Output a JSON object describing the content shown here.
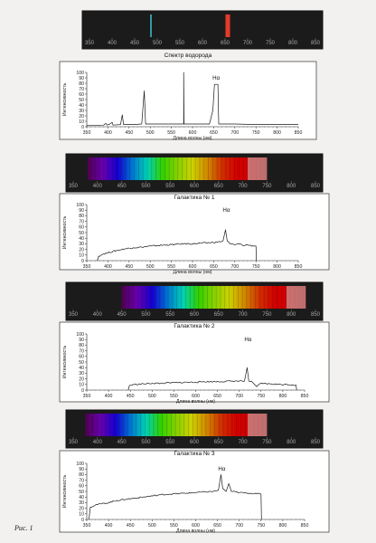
{
  "figure_label": "Рис. 1",
  "chart_data": [
    {
      "type": "line",
      "id": "hydrogen",
      "title": "Спектр водорода",
      "xlabel": "Длина волны (нм)",
      "ylabel": "Интенсивность",
      "xlim": [
        350,
        850
      ],
      "ylim": [
        0,
        100
      ],
      "x_ticks": [
        350,
        400,
        450,
        500,
        550,
        600,
        650,
        700,
        750,
        800,
        850
      ],
      "y_ticks": [
        0,
        10,
        20,
        30,
        40,
        50,
        60,
        70,
        80,
        90,
        100
      ],
      "strip_ticks": [
        350,
        400,
        450,
        500,
        550,
        600,
        650,
        700,
        750,
        800,
        850
      ],
      "strip_lines": [
        {
          "nm": 486,
          "color": "#3fd0e0"
        },
        {
          "nm": 656,
          "color": "#e43b2a"
        }
      ],
      "annotation": {
        "text": "Hα",
        "x": 656
      },
      "series": [
        {
          "points": [
            [
              350,
              2
            ],
            [
              390,
              3
            ],
            [
              395,
              6
            ],
            [
              398,
              3
            ],
            [
              405,
              5
            ],
            [
              410,
              8
            ],
            [
              412,
              3
            ],
            [
              430,
              4
            ],
            [
              434,
              22
            ],
            [
              437,
              4
            ],
            [
              460,
              4
            ],
            [
              480,
              5
            ],
            [
              486,
              66
            ],
            [
              489,
              5
            ],
            [
              540,
              5
            ],
            [
              579,
              5
            ],
            [
              579,
              100
            ],
            [
              580,
              5
            ],
            [
              640,
              5
            ],
            [
              648,
              30
            ],
            [
              652,
              78
            ],
            [
              660,
              78
            ],
            [
              662,
              5
            ],
            [
              700,
              5
            ],
            [
              750,
              4
            ],
            [
              800,
              4
            ],
            [
              850,
              4
            ]
          ]
        }
      ]
    },
    {
      "type": "line",
      "id": "galaxy1",
      "title": "Галактика № 1",
      "xlabel": "Длина волны (нм)",
      "ylabel": "Интенсивность",
      "xlim": [
        350,
        850
      ],
      "ylim": [
        0,
        100
      ],
      "x_ticks": [
        350,
        400,
        450,
        500,
        550,
        600,
        650,
        700,
        750,
        800,
        850
      ],
      "y_ticks": [
        0,
        10,
        20,
        30,
        40,
        50,
        60,
        70,
        80,
        90,
        100
      ],
      "strip_ticks": [
        350,
        400,
        450,
        500,
        550,
        600,
        650,
        700,
        750,
        800,
        850
      ],
      "strip_range": [
        380,
        750
      ],
      "annotation": {
        "text": "Hα",
        "x": 680
      },
      "series": [
        {
          "points": [
            [
              375,
              0
            ],
            [
              378,
              8
            ],
            [
              390,
              12
            ],
            [
              400,
              14
            ],
            [
              420,
              18
            ],
            [
              440,
              21
            ],
            [
              460,
              23
            ],
            [
              480,
              24
            ],
            [
              500,
              26
            ],
            [
              520,
              27
            ],
            [
              540,
              28
            ],
            [
              560,
              29
            ],
            [
              580,
              30
            ],
            [
              600,
              30
            ],
            [
              620,
              31
            ],
            [
              640,
              32
            ],
            [
              660,
              33
            ],
            [
              672,
              35
            ],
            [
              678,
              55
            ],
            [
              682,
              35
            ],
            [
              690,
              30
            ],
            [
              700,
              28
            ],
            [
              710,
              30
            ],
            [
              720,
              27
            ],
            [
              730,
              28
            ],
            [
              745,
              26
            ],
            [
              750,
              26
            ],
            [
              751,
              0
            ]
          ]
        }
      ]
    },
    {
      "type": "line",
      "id": "galaxy2",
      "title": "Галактика № 2",
      "xlabel": "Длина волны (нм)",
      "ylabel": "Интенсивность",
      "xlim": [
        350,
        850
      ],
      "ylim": [
        0,
        100
      ],
      "x_ticks": [
        350,
        400,
        450,
        500,
        550,
        600,
        650,
        700,
        750,
        800,
        850
      ],
      "y_ticks": [
        0,
        10,
        20,
        30,
        40,
        50,
        60,
        70,
        80,
        90,
        100
      ],
      "strip_ticks": [
        350,
        400,
        450,
        500,
        550,
        600,
        650,
        700,
        750,
        800,
        850
      ],
      "strip_range": [
        450,
        830
      ],
      "annotation": {
        "text": "Hα",
        "x": 720
      },
      "series": [
        {
          "points": [
            [
              445,
              0
            ],
            [
              448,
              8
            ],
            [
              460,
              10
            ],
            [
              480,
              11
            ],
            [
              500,
              12
            ],
            [
              520,
              12
            ],
            [
              540,
              13
            ],
            [
              560,
              13
            ],
            [
              580,
              14
            ],
            [
              600,
              14
            ],
            [
              620,
              15
            ],
            [
              640,
              15
            ],
            [
              660,
              15
            ],
            [
              680,
              16
            ],
            [
              700,
              16
            ],
            [
              712,
              16
            ],
            [
              718,
              40
            ],
            [
              722,
              16
            ],
            [
              730,
              14
            ],
            [
              740,
              6
            ],
            [
              750,
              12
            ],
            [
              770,
              11
            ],
            [
              790,
              10
            ],
            [
              810,
              10
            ],
            [
              830,
              9
            ],
            [
              832,
              0
            ]
          ]
        }
      ]
    },
    {
      "type": "line",
      "id": "galaxy3",
      "title": "Галактика № 3",
      "xlabel": "Длина волны (нм)",
      "ylabel": "Интенсивность",
      "xlim": [
        350,
        850
      ],
      "ylim": [
        0,
        100
      ],
      "x_ticks": [
        350,
        400,
        450,
        500,
        550,
        600,
        650,
        700,
        750,
        800,
        850
      ],
      "y_ticks": [
        0,
        10,
        20,
        30,
        40,
        50,
        60,
        70,
        80,
        90,
        100
      ],
      "strip_ticks": [
        350,
        400,
        450,
        500,
        550,
        600,
        650,
        700,
        750,
        800,
        850
      ],
      "strip_range": [
        375,
        750
      ],
      "annotation": {
        "text": "Hα",
        "x": 660
      },
      "series": [
        {
          "points": [
            [
              355,
              0
            ],
            [
              358,
              22
            ],
            [
              370,
              26
            ],
            [
              385,
              28
            ],
            [
              400,
              30
            ],
            [
              420,
              34
            ],
            [
              440,
              36
            ],
            [
              460,
              38
            ],
            [
              480,
              40
            ],
            [
              500,
              42
            ],
            [
              520,
              44
            ],
            [
              540,
              45
            ],
            [
              560,
              46
            ],
            [
              580,
              47
            ],
            [
              600,
              48
            ],
            [
              620,
              49
            ],
            [
              640,
              50
            ],
            [
              652,
              52
            ],
            [
              658,
              80
            ],
            [
              662,
              55
            ],
            [
              670,
              50
            ],
            [
              676,
              64
            ],
            [
              682,
              50
            ],
            [
              700,
              48
            ],
            [
              720,
              47
            ],
            [
              740,
              46
            ],
            [
              750,
              45
            ],
            [
              751,
              0
            ]
          ]
        }
      ]
    }
  ]
}
